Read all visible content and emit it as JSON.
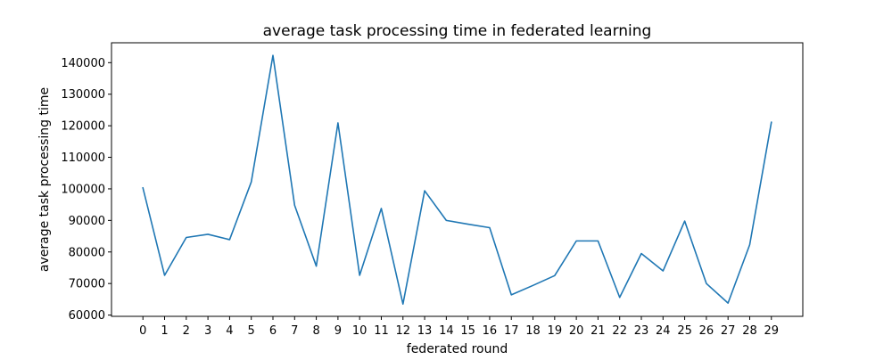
{
  "chart_data": {
    "type": "line",
    "title": "average task processing time in federated learning",
    "xlabel": "federated round",
    "ylabel": "average task processing time",
    "x": [
      0,
      1,
      2,
      3,
      4,
      5,
      6,
      7,
      8,
      9,
      10,
      11,
      12,
      13,
      14,
      15,
      16,
      17,
      18,
      19,
      20,
      21,
      22,
      23,
      24,
      25,
      26,
      27,
      28,
      29
    ],
    "series": [
      {
        "values": [
          100300,
          72600,
          84600,
          85600,
          83900,
          102200,
          142300,
          94800,
          75500,
          120900,
          72600,
          93800,
          63500,
          99400,
          90000,
          88800,
          87700,
          66400,
          69400,
          72500,
          83500,
          83500,
          65600,
          79500,
          74000,
          89800,
          70000,
          63800,
          82300,
          121100
        ],
        "color": "#1f77b4"
      }
    ],
    "xlim": [
      -1.45,
      30.45
    ],
    "ylim": [
      59600,
      146300
    ],
    "yticks": [
      60000,
      70000,
      80000,
      90000,
      100000,
      110000,
      120000,
      130000,
      140000
    ],
    "ytick_labels": [
      "60000",
      "70000",
      "80000",
      "90000",
      "100000",
      "110000",
      "120000",
      "130000",
      "140000"
    ],
    "xtick_labels": [
      "0",
      "1",
      "2",
      "3",
      "4",
      "5",
      "6",
      "7",
      "8",
      "9",
      "10",
      "11",
      "12",
      "13",
      "14",
      "15",
      "16",
      "17",
      "18",
      "19",
      "20",
      "21",
      "22",
      "23",
      "24",
      "25",
      "26",
      "27",
      "28",
      "29"
    ],
    "grid": false,
    "legend": false
  }
}
